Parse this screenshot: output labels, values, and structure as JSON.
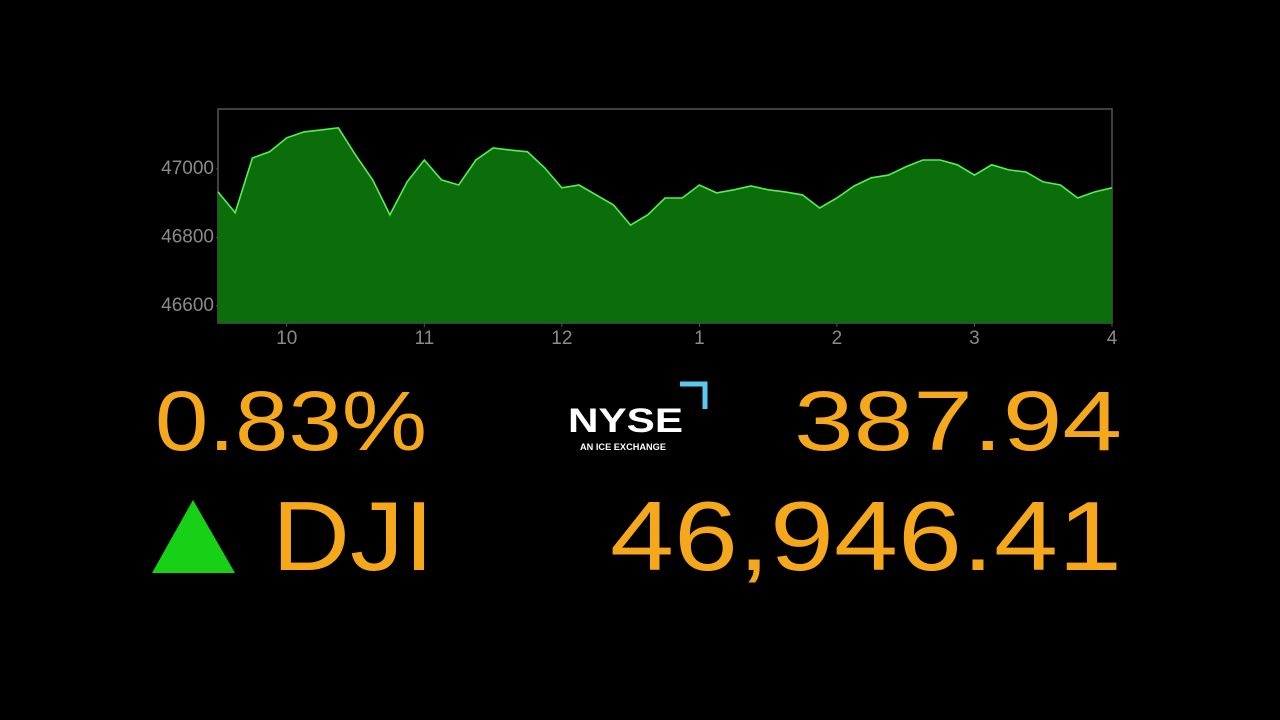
{
  "chart_data": {
    "type": "area",
    "x": [
      9.5,
      9.625,
      9.75,
      9.875,
      10,
      10.125,
      10.25,
      10.375,
      10.5,
      10.625,
      10.75,
      10.875,
      11,
      11.125,
      11.25,
      11.375,
      11.5,
      11.625,
      11.75,
      11.875,
      12,
      12.125,
      12.25,
      12.375,
      12.5,
      12.625,
      12.75,
      12.875,
      13,
      13.125,
      13.25,
      13.375,
      13.5,
      13.625,
      13.75,
      13.875,
      14,
      14.125,
      14.25,
      14.375,
      14.5,
      14.625,
      14.75,
      14.875,
      15,
      15.125,
      15.25,
      15.375,
      15.5,
      15.625,
      15.75,
      15.875,
      16
    ],
    "values": [
      46933,
      46872,
      47032,
      47050,
      47091,
      47108,
      47114,
      47120,
      47041,
      46968,
      46866,
      46962,
      47026,
      46968,
      46953,
      47026,
      47061,
      47055,
      47050,
      47003,
      46945,
      46953,
      46924,
      46895,
      46836,
      46866,
      46915,
      46915,
      46953,
      46930,
      46939,
      46950,
      46939,
      46933,
      46924,
      46886,
      46915,
      46950,
      46974,
      46982,
      47006,
      47026,
      47026,
      47012,
      46982,
      47012,
      46997,
      46991,
      46962,
      46953,
      46915,
      46933,
      46945
    ],
    "color": "#0b6e0b",
    "line_color": "#52f252",
    "xlim": [
      9.5,
      16
    ],
    "xticks": [
      10,
      11,
      12,
      {
        "value": 13,
        "label": "1"
      },
      {
        "value": 14,
        "label": "2"
      },
      {
        "value": 15,
        "label": "3"
      },
      {
        "value": 16,
        "label": "4"
      }
    ],
    "ylim": [
      46550,
      47175
    ],
    "yticks": [
      46600,
      46800,
      47000
    ]
  },
  "ticker": {
    "change_percent": "0.83%",
    "change_points": "387.94",
    "symbol": "DJI",
    "value": "46,946.41",
    "exchange_logo": "NYSE",
    "exchange_tagline": "AN ICE EXCHANGE"
  }
}
